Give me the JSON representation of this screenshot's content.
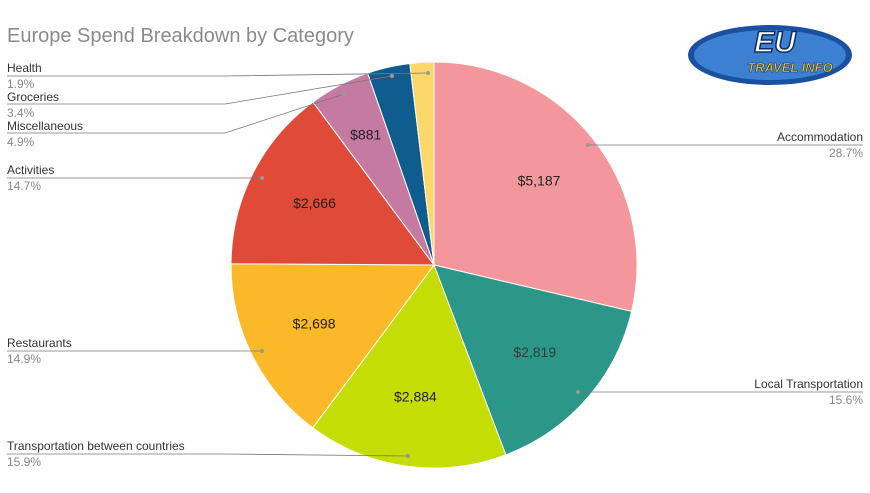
{
  "chart_data": {
    "type": "pie",
    "title": "Europe Spend Breakdown by Category",
    "categories": [
      "Accommodation",
      "Local Transportation",
      "Transportation between countries",
      "Restaurants",
      "Activities",
      "Miscellaneous",
      "Groceries",
      "Health"
    ],
    "values": [
      5187,
      2819,
      2884,
      2698,
      2666,
      881,
      615,
      344
    ],
    "value_labels": [
      "$5,187",
      "$2,819",
      "$2,884",
      "$2,698",
      "$2,666",
      "$881",
      null,
      null
    ],
    "percent_labels": [
      "28.7%",
      "15.6%",
      "15.9%",
      "14.9%",
      "14.7%",
      "4.9%",
      "3.4%",
      "1.9%"
    ],
    "colors": [
      "#f4979c",
      "#2a9788",
      "#c4dd04",
      "#fbb829",
      "#e04a38",
      "#c57aa2",
      "#0f5c8e",
      "#fcd86c"
    ]
  },
  "logo": {
    "title": "EU",
    "subtitle": "TRAVEL INFO"
  }
}
